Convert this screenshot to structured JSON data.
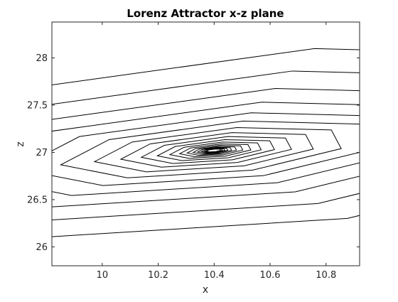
{
  "chart_data": {
    "type": "line",
    "title": "Lorenz Attractor x-z plane",
    "xlabel": "x",
    "ylabel": "z",
    "xlim": [
      9.82,
      10.92
    ],
    "ylim": [
      25.8,
      28.38
    ],
    "xticks": [
      "10",
      "10.2",
      "10.4",
      "10.6",
      "10.8"
    ],
    "yticks": [
      "26",
      "26.5",
      "27",
      "27.5",
      "28"
    ],
    "grid": false,
    "legend": "none",
    "series": [
      {
        "color": "#000000",
        "center": [
          10.4,
          27.02
        ],
        "rotation_deg": 18,
        "semi_major_max": 2.2,
        "semi_minor_max": 1.0,
        "decay_per_turn": 0.78,
        "vertices_per_turn": 7,
        "turns": 18
      }
    ]
  }
}
